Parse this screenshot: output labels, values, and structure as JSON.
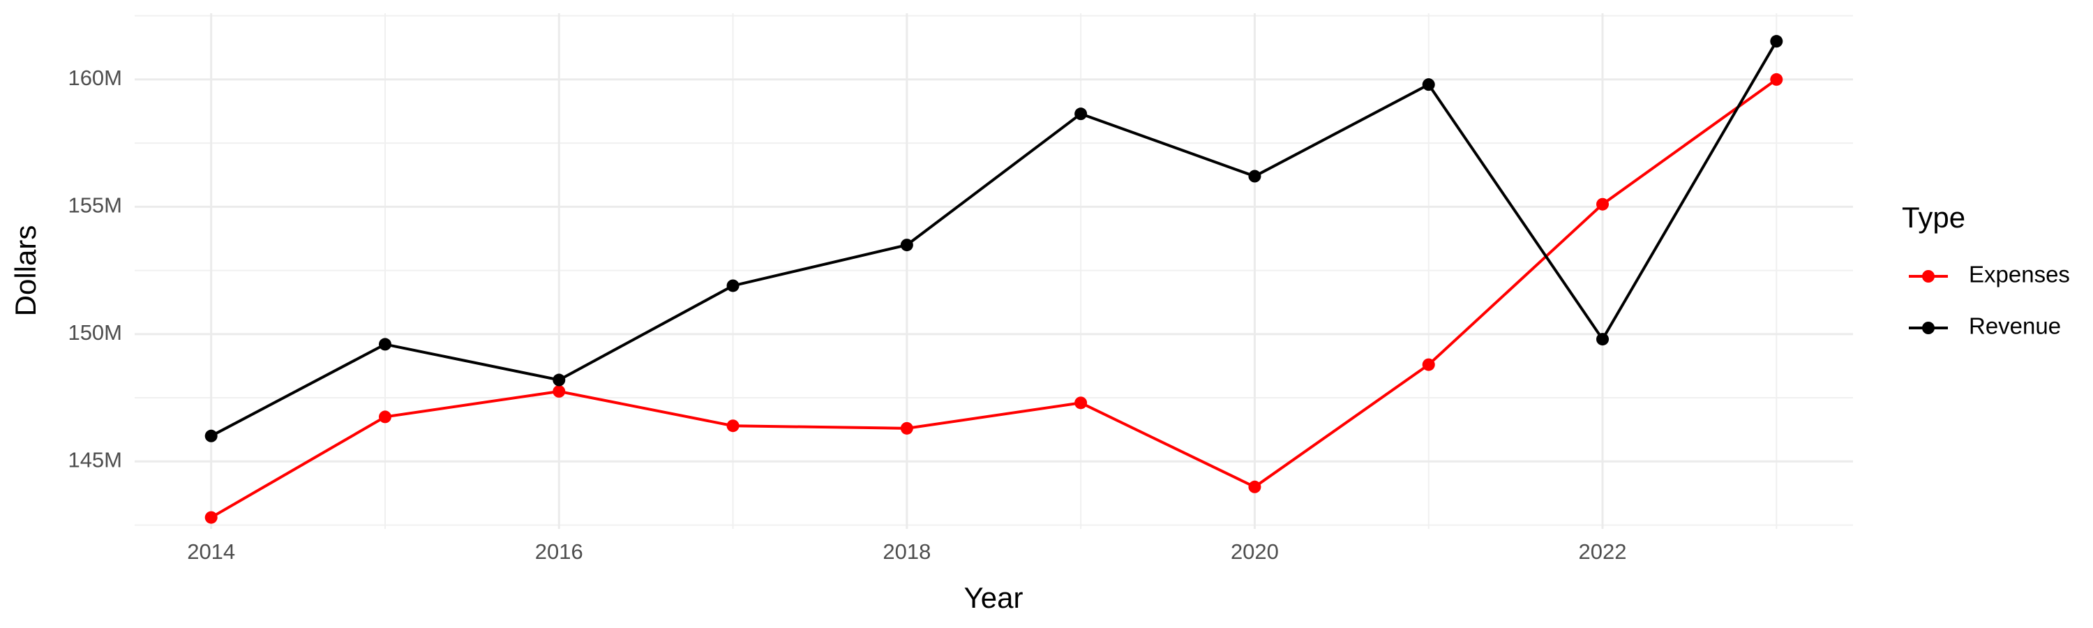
{
  "chart_data": {
    "type": "line",
    "x_label": "Year",
    "y_label": "Dollars",
    "legend_title": "Type",
    "x": [
      2014,
      2015,
      2016,
      2017,
      2018,
      2019,
      2020,
      2021,
      2022,
      2023
    ],
    "series": [
      {
        "name": "Expenses",
        "color": "#ff0000",
        "values": [
          142800000,
          146750000,
          147750000,
          146400000,
          146300000,
          147300000,
          144000000,
          148800000,
          155100000,
          160000000
        ]
      },
      {
        "name": "Revenue",
        "color": "#000000",
        "values": [
          146000000,
          149600000,
          148200000,
          151900000,
          153500000,
          158650000,
          156200000,
          159800000,
          149800000,
          161500000
        ]
      }
    ],
    "xlim": [
      2013.56,
      2023.44
    ],
    "xticks": [
      2014,
      2016,
      2018,
      2020,
      2022
    ],
    "ylim": [
      142350000,
      162600000
    ],
    "yticks": [
      {
        "value": 145000000,
        "label": "145M"
      },
      {
        "value": 150000000,
        "label": "150M"
      },
      {
        "value": 155000000,
        "label": "155M"
      },
      {
        "value": 160000000,
        "label": "160M"
      }
    ],
    "grid": true,
    "legend": "right"
  }
}
